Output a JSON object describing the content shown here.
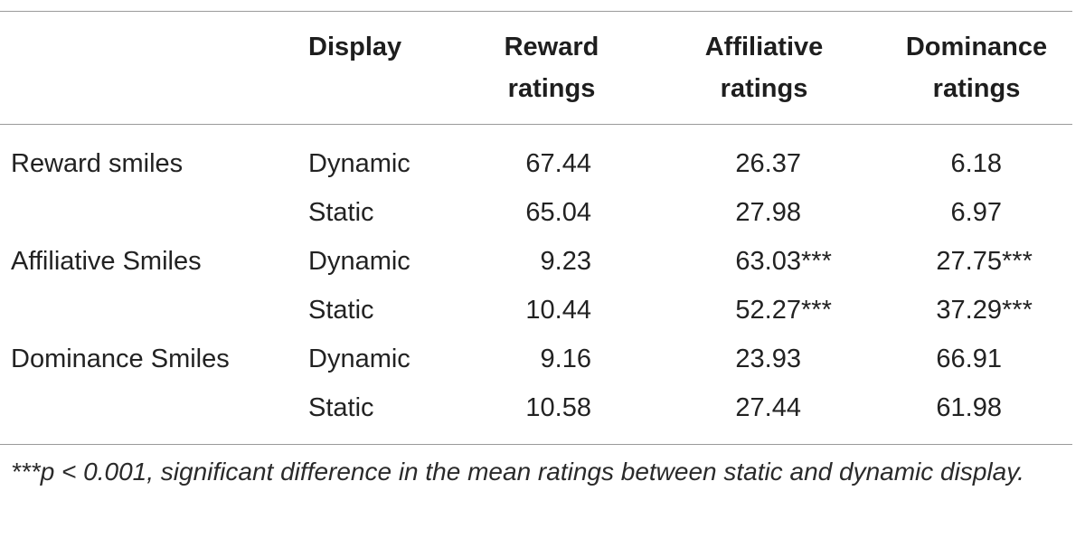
{
  "table": {
    "headers": {
      "group": "",
      "display": "Display",
      "reward_line1": "Reward",
      "reward_line2": "ratings",
      "affiliative_line1": "Affiliative",
      "affiliative_line2": "ratings",
      "dominance_line1": "Dominance",
      "dominance_line2": "ratings"
    },
    "rows": [
      {
        "group": "Reward smiles",
        "display": "Dynamic",
        "reward": "67.44",
        "reward_sig": "",
        "affiliative": "26.37",
        "affiliative_sig": "",
        "dominance": "6.18",
        "dominance_sig": ""
      },
      {
        "group": "",
        "display": "Static",
        "reward": "65.04",
        "reward_sig": "",
        "affiliative": "27.98",
        "affiliative_sig": "",
        "dominance": "6.97",
        "dominance_sig": ""
      },
      {
        "group": "Affiliative Smiles",
        "display": "Dynamic",
        "reward": "9.23",
        "reward_sig": "",
        "affiliative": "63.03",
        "affiliative_sig": "***",
        "dominance": "27.75",
        "dominance_sig": "***"
      },
      {
        "group": "",
        "display": "Static",
        "reward": "10.44",
        "reward_sig": "",
        "affiliative": "52.27",
        "affiliative_sig": "***",
        "dominance": "37.29",
        "dominance_sig": "***"
      },
      {
        "group": "Dominance Smiles",
        "display": "Dynamic",
        "reward": "9.16",
        "reward_sig": "",
        "affiliative": "23.93",
        "affiliative_sig": "",
        "dominance": "66.91",
        "dominance_sig": ""
      },
      {
        "group": "",
        "display": "Static",
        "reward": "10.58",
        "reward_sig": "",
        "affiliative": "27.44",
        "affiliative_sig": "",
        "dominance": "61.98",
        "dominance_sig": ""
      }
    ],
    "footnote": "***p < 0.001, significant difference in the mean ratings between static and dynamic display."
  }
}
